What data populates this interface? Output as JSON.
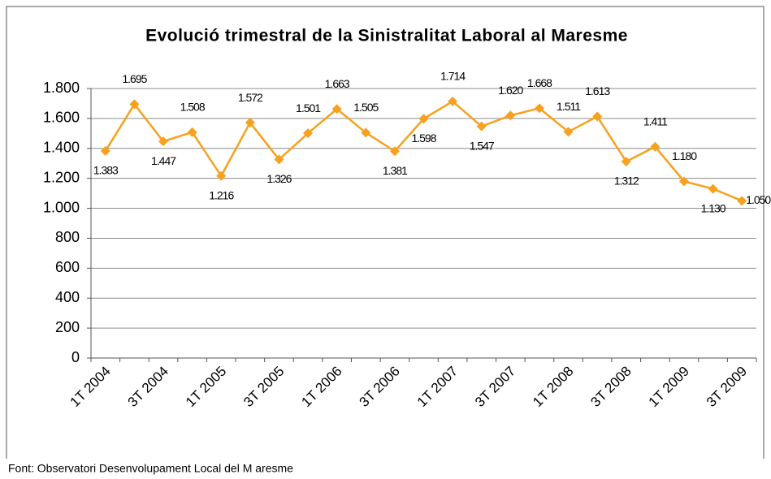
{
  "chart_data": {
    "type": "line",
    "title": "Evolució trimestral de la Sinistralitat Laboral al Maresme",
    "source": "Font: Observatori  Desenvolupament Local del M aresme",
    "categories": [
      "1T 2004",
      null,
      "3T 2004",
      null,
      "1T 2005",
      null,
      "3T 2005",
      null,
      "1T 2006",
      null,
      "3T 2006",
      null,
      "1T 2007",
      null,
      "3T 2007",
      null,
      "1T 2008",
      null,
      "3T 2008",
      null,
      "1T 2009",
      null,
      "3T 2009"
    ],
    "values": [
      1383,
      1695,
      1447,
      1508,
      1216,
      1572,
      1326,
      1501,
      1663,
      1505,
      1381,
      1598,
      1714,
      1547,
      1620,
      1668,
      1511,
      1613,
      1312,
      1411,
      1180,
      1130,
      1050
    ],
    "value_labels": [
      "1.383",
      "1.695",
      "1.447",
      "1.508",
      "1.216",
      "1.572",
      "1.326",
      "1.501",
      "1.663",
      "1.505",
      "1.381",
      "1.598",
      "1.714",
      "1.547",
      "1.620",
      "1.668",
      "1.511",
      "1.613",
      "1.312",
      "1.411",
      "1.180",
      "1.130",
      "1.050"
    ],
    "color": "#f7a11d",
    "ylim": [
      0,
      1800
    ],
    "yticks": [
      0,
      200,
      400,
      600,
      800,
      {
        "value": 1000,
        "label": "1.000"
      },
      {
        "value": 1200,
        "label": "1.200"
      },
      {
        "value": 1400,
        "label": "1.400"
      },
      {
        "value": 1600,
        "label": "1.600"
      },
      {
        "value": 1800,
        "label": "1.800"
      }
    ],
    "grid": true
  }
}
